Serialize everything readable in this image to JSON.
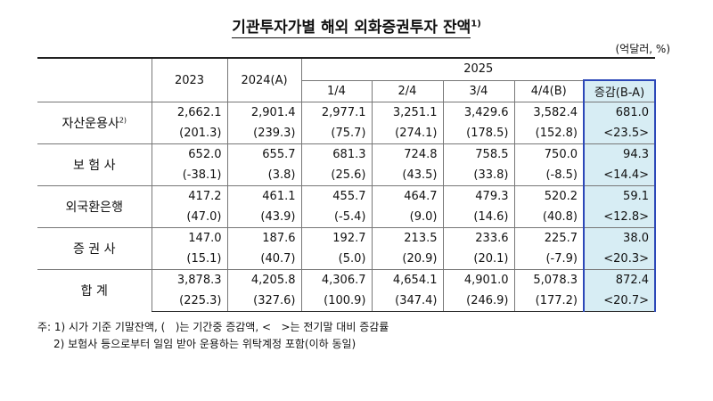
{
  "title": "기관투자가별 해외 외화증권투자 잔액",
  "title_note": "1)",
  "unit": "(억달러, %)",
  "header": {
    "years": [
      "2023",
      "2024(A)",
      "2025"
    ],
    "quarters": [
      "1/4",
      "2/4",
      "3/4",
      "4/4(B)",
      "증감(B-A)"
    ]
  },
  "rows": [
    {
      "label": "자산운용사",
      "note": "2)",
      "values": [
        "2,662.1",
        "2,901.4",
        "2,977.1",
        "3,251.1",
        "3,429.6",
        "3,582.4",
        "681.0"
      ],
      "changes": [
        "(201.3)",
        "(239.3)",
        "(75.7)",
        "(274.1)",
        "(178.5)",
        "(152.8)",
        "<23.5>"
      ]
    },
    {
      "label": "보 험 사",
      "values": [
        "652.0",
        "655.7",
        "681.3",
        "724.8",
        "758.5",
        "750.0",
        "94.3"
      ],
      "changes": [
        "(-38.1)",
        "(3.8)",
        "(25.6)",
        "(43.5)",
        "(33.8)",
        "(-8.5)",
        "<14.4>"
      ]
    },
    {
      "label": "외국환은행",
      "values": [
        "417.2",
        "461.1",
        "455.7",
        "464.7",
        "479.3",
        "520.2",
        "59.1"
      ],
      "changes": [
        "(47.0)",
        "(43.9)",
        "(-5.4)",
        "(9.0)",
        "(14.6)",
        "(40.8)",
        "<12.8>"
      ]
    },
    {
      "label": "증 권 사",
      "values": [
        "147.0",
        "187.6",
        "192.7",
        "213.5",
        "233.6",
        "225.7",
        "38.0"
      ],
      "changes": [
        "(15.1)",
        "(40.7)",
        "(5.0)",
        "(20.9)",
        "(20.1)",
        "(-7.9)",
        "<20.3>"
      ]
    },
    {
      "label": "합 계",
      "values": [
        "3,878.3",
        "4,205.8",
        "4,306.7",
        "4,654.1",
        "4,901.0",
        "5,078.3",
        "872.4"
      ],
      "changes": [
        "(225.3)",
        "(327.6)",
        "(100.9)",
        "(347.4)",
        "(246.9)",
        "(177.2)",
        "<20.7>"
      ]
    }
  ],
  "footnotes": [
    "주: 1) 시가 기준 기말잔액, (   )는 기간중 증감액, <   >는 전기말 대비 증감률",
    "2) 보험사 등으로부터 일임 받아 운용하는 위탁계정 포함(이하 동일)"
  ]
}
